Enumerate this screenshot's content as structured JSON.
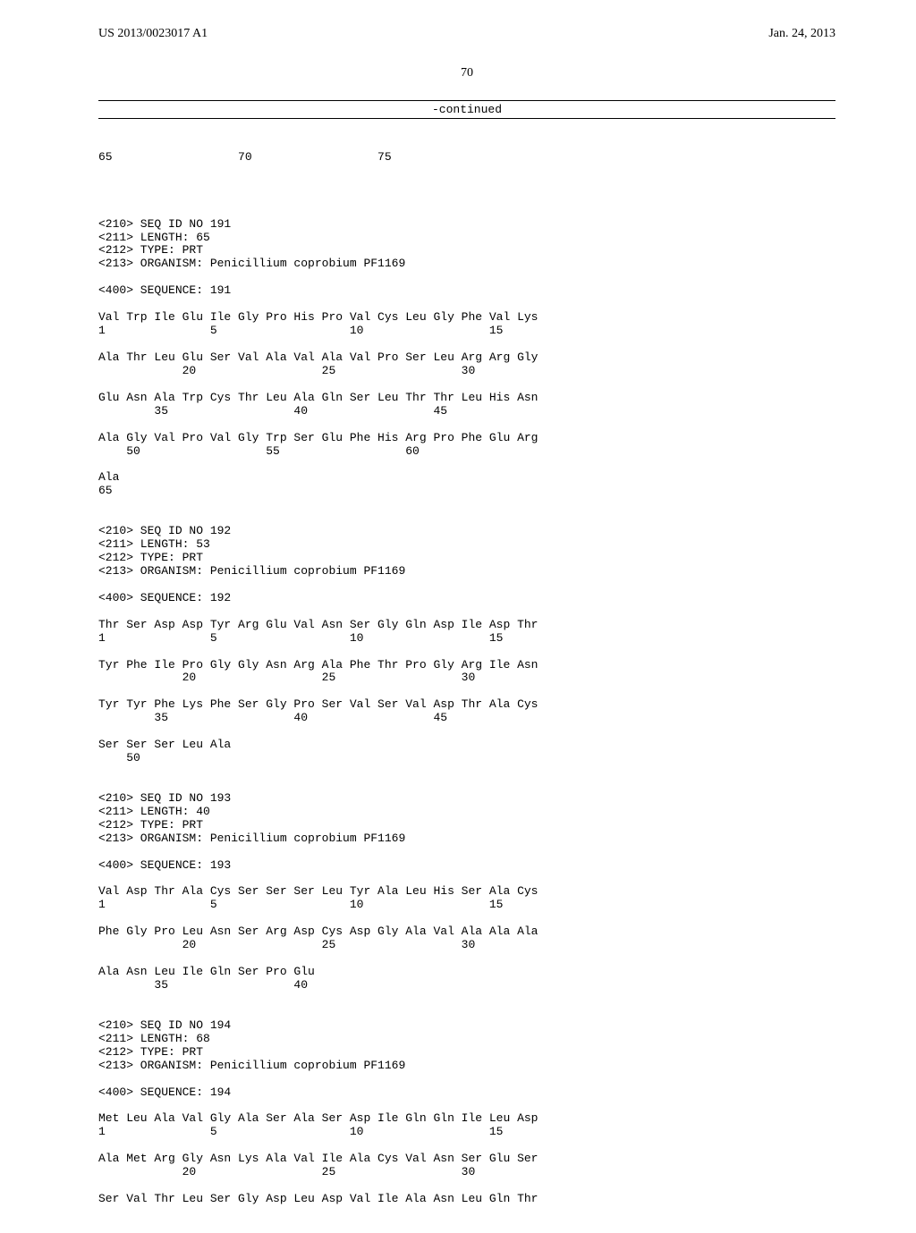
{
  "header": {
    "left": "US 2013/0023017 A1",
    "right": "Jan. 24, 2013"
  },
  "page_number": "70",
  "continued_label": "-continued",
  "pre_lines": "65                  70                  75",
  "entries": [
    {
      "meta": [
        "<210> SEQ ID NO 191",
        "<211> LENGTH: 65",
        "<212> TYPE: PRT",
        "<213> ORGANISM: Penicillium coprobium PF1169"
      ],
      "seq_header": "<400> SEQUENCE: 191",
      "lines": [
        "Val Trp Ile Glu Ile Gly Pro His Pro Val Cys Leu Gly Phe Val Lys",
        "1               5                   10                  15",
        "",
        "Ala Thr Leu Glu Ser Val Ala Val Ala Val Pro Ser Leu Arg Arg Gly",
        "            20                  25                  30",
        "",
        "Glu Asn Ala Trp Cys Thr Leu Ala Gln Ser Leu Thr Thr Leu His Asn",
        "        35                  40                  45",
        "",
        "Ala Gly Val Pro Val Gly Trp Ser Glu Phe His Arg Pro Phe Glu Arg",
        "    50                  55                  60",
        "",
        "Ala",
        "65"
      ]
    },
    {
      "meta": [
        "<210> SEQ ID NO 192",
        "<211> LENGTH: 53",
        "<212> TYPE: PRT",
        "<213> ORGANISM: Penicillium coprobium PF1169"
      ],
      "seq_header": "<400> SEQUENCE: 192",
      "lines": [
        "Thr Ser Asp Asp Tyr Arg Glu Val Asn Ser Gly Gln Asp Ile Asp Thr",
        "1               5                   10                  15",
        "",
        "Tyr Phe Ile Pro Gly Gly Asn Arg Ala Phe Thr Pro Gly Arg Ile Asn",
        "            20                  25                  30",
        "",
        "Tyr Tyr Phe Lys Phe Ser Gly Pro Ser Val Ser Val Asp Thr Ala Cys",
        "        35                  40                  45",
        "",
        "Ser Ser Ser Leu Ala",
        "    50"
      ]
    },
    {
      "meta": [
        "<210> SEQ ID NO 193",
        "<211> LENGTH: 40",
        "<212> TYPE: PRT",
        "<213> ORGANISM: Penicillium coprobium PF1169"
      ],
      "seq_header": "<400> SEQUENCE: 193",
      "lines": [
        "Val Asp Thr Ala Cys Ser Ser Ser Leu Tyr Ala Leu His Ser Ala Cys",
        "1               5                   10                  15",
        "",
        "Phe Gly Pro Leu Asn Ser Arg Asp Cys Asp Gly Ala Val Ala Ala Ala",
        "            20                  25                  30",
        "",
        "Ala Asn Leu Ile Gln Ser Pro Glu",
        "        35                  40"
      ]
    },
    {
      "meta": [
        "<210> SEQ ID NO 194",
        "<211> LENGTH: 68",
        "<212> TYPE: PRT",
        "<213> ORGANISM: Penicillium coprobium PF1169"
      ],
      "seq_header": "<400> SEQUENCE: 194",
      "lines": [
        "Met Leu Ala Val Gly Ala Ser Ala Ser Asp Ile Gln Gln Ile Leu Asp",
        "1               5                   10                  15",
        "",
        "Ala Met Arg Gly Asn Lys Ala Val Ile Ala Cys Val Asn Ser Glu Ser",
        "            20                  25                  30",
        "",
        "Ser Val Thr Leu Ser Gly Asp Leu Asp Val Ile Ala Asn Leu Gln Thr"
      ]
    }
  ]
}
